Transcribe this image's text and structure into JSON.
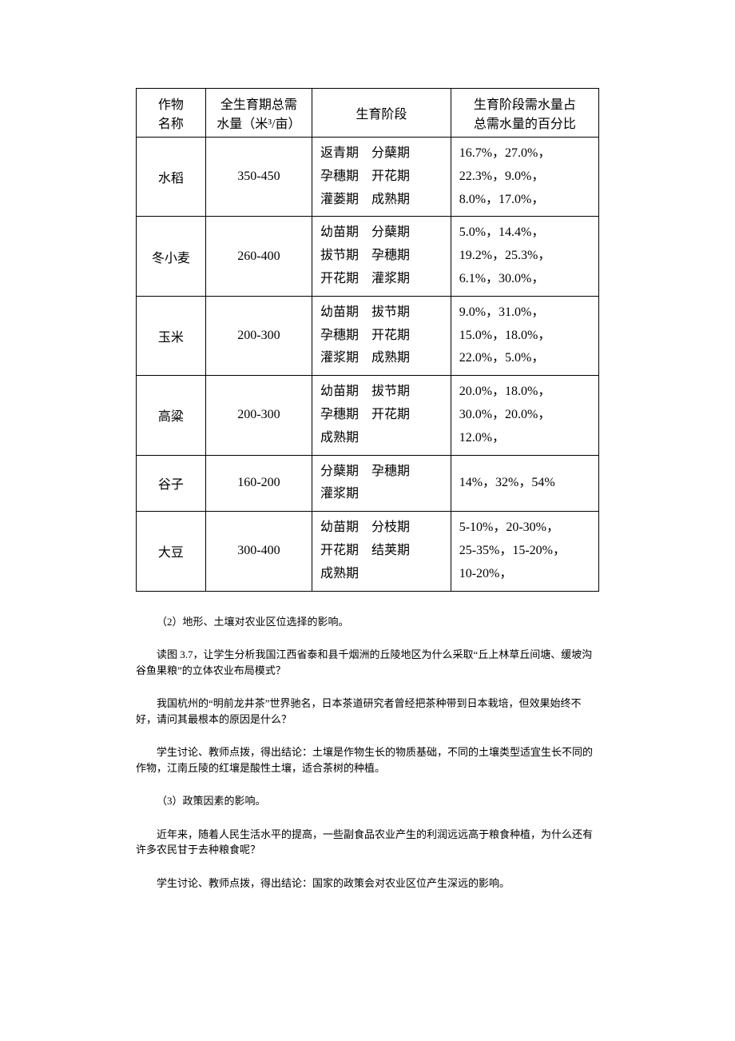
{
  "table": {
    "headers": {
      "col1": "作物\n名称",
      "col2": "全生育期总需\n水量（米³/亩）",
      "col3": "生育阶段",
      "col4": "生育阶段需水量占\n总需水量的百分比"
    },
    "rows": [
      {
        "crop": "水稻",
        "water": "350-450",
        "stages_lines": [
          "返青期　分蘖期",
          "孕穗期　开花期",
          "灌蒌期　成熟期"
        ],
        "pct_lines": [
          "16.7%，27.0%，",
          "22.3%，9.0%，",
          "8.0%，17.0%，"
        ]
      },
      {
        "crop": "冬小麦",
        "water": "260-400",
        "stages_lines": [
          "幼苗期　分蘖期",
          "拔节期　孕穗期",
          "开花期　灌浆期"
        ],
        "pct_lines": [
          "5.0%，14.4%，",
          "19.2%，25.3%，",
          "6.1%，30.0%，"
        ]
      },
      {
        "crop": "玉米",
        "water": "200-300",
        "stages_lines": [
          "幼苗期　拔节期",
          "孕穗期　开花期",
          "灌浆期　成熟期"
        ],
        "pct_lines": [
          "9.0%，31.0%，",
          "15.0%，18.0%，",
          "22.0%，5.0%，"
        ]
      },
      {
        "crop": "高粱",
        "water": "200-300",
        "stages_lines": [
          "幼苗期　拔节期",
          "孕穗期　开花期",
          "成熟期"
        ],
        "pct_lines": [
          "20.0%，18.0%，",
          "30.0%，20.0%，",
          "12.0%，"
        ]
      },
      {
        "crop": "谷子",
        "water": "160-200",
        "stages_lines": [
          "分蘖期　孕穗期",
          "灌浆期"
        ],
        "pct_lines": [
          "14%，32%，54%"
        ]
      },
      {
        "crop": "大豆",
        "water": "300-400",
        "stages_lines": [
          "幼苗期　分枝期",
          "开花期　结荚期",
          "成熟期"
        ],
        "pct_lines": [
          "5-10%，20-30%，",
          "25-35%，15-20%，",
          "10-20%，"
        ]
      }
    ]
  },
  "paragraphs": [
    "（2）地形、土壤对农业区位选择的影响。",
    "读图 3.7，让学生分析我国江西省泰和县千烟洲的丘陵地区为什么采取“丘上林草丘间塘、缓坡沟谷鱼果粮”的立体农业布局模式？",
    "我国杭州的“明前龙井茶”世界驰名，日本茶道研究者曾经把茶种带到日本栽培，但效果始终不好，请问其最根本的原因是什么？",
    "学生讨论、教师点拨，得出结论：土壤是作物生长的物质基础，不同的土壤类型适宜生长不同的作物，江南丘陵的红壤是酸性土壤，适合茶树的种植。",
    "（3）政策因素的影响。",
    "近年来，随着人民生活水平的提高，一些副食品农业产生的利润远远高于粮食种植，为什么还有许多农民甘于去种粮食呢？",
    "学生讨论、教师点拨，得出结论：国家的政策会对农业区位产生深远的影响。"
  ]
}
